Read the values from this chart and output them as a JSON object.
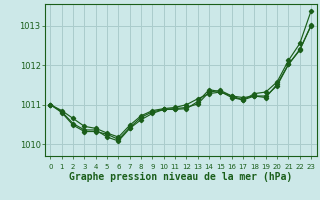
{
  "title": "Graphe pression niveau de la mer (hPa)",
  "bg_color": "#cce8e8",
  "grid_color": "#aacccc",
  "line_color": "#1a5e1a",
  "marker_color": "#1a5e1a",
  "x_labels": [
    "0",
    "1",
    "2",
    "3",
    "4",
    "5",
    "6",
    "7",
    "8",
    "9",
    "10",
    "11",
    "12",
    "13",
    "14",
    "15",
    "16",
    "17",
    "18",
    "19",
    "20",
    "21",
    "22",
    "23"
  ],
  "ylim": [
    1009.7,
    1013.55
  ],
  "yticks": [
    1010,
    1011,
    1012,
    1013
  ],
  "series1": [
    1011.0,
    1010.85,
    1010.65,
    1010.45,
    1010.4,
    1010.28,
    1010.18,
    1010.48,
    1010.72,
    1010.85,
    1010.9,
    1010.93,
    1011.0,
    1011.15,
    1011.28,
    1011.32,
    1011.22,
    1011.12,
    1011.28,
    1011.32,
    1011.58,
    1012.12,
    1012.55,
    1013.38
  ],
  "series2": [
    1011.0,
    1010.8,
    1010.48,
    1010.32,
    1010.32,
    1010.25,
    1010.12,
    1010.42,
    1010.68,
    1010.82,
    1010.88,
    1010.9,
    1010.93,
    1011.02,
    1011.32,
    1011.36,
    1011.22,
    1011.18,
    1011.22,
    1011.18,
    1011.52,
    1012.02,
    1012.38,
    1013.02
  ],
  "series3": [
    1011.0,
    1010.82,
    1010.52,
    1010.36,
    1010.36,
    1010.18,
    1010.08,
    1010.4,
    1010.62,
    1010.78,
    1010.88,
    1010.88,
    1010.9,
    1011.08,
    1011.38,
    1011.33,
    1011.18,
    1011.12,
    1011.22,
    1011.22,
    1011.48,
    1012.02,
    1012.4,
    1013.0
  ]
}
